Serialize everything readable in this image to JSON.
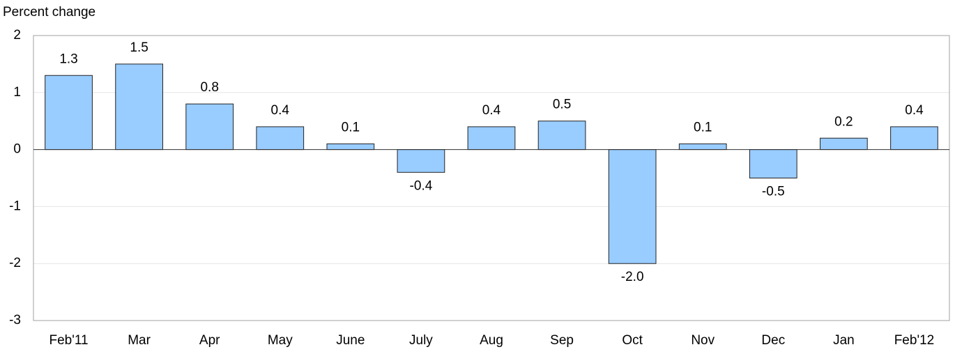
{
  "chart_data": {
    "type": "bar",
    "title": "Percent change",
    "categories": [
      "Feb'11",
      "Mar",
      "Apr",
      "May",
      "June",
      "July",
      "Aug",
      "Sep",
      "Oct",
      "Nov",
      "Dec",
      "Jan",
      "Feb'12"
    ],
    "values": [
      1.3,
      1.5,
      0.8,
      0.4,
      0.1,
      -0.4,
      0.4,
      0.5,
      -2.0,
      0.1,
      -0.5,
      0.2,
      0.4
    ],
    "value_labels": [
      "1.3",
      "1.5",
      "0.8",
      "0.4",
      "0.1",
      "-0.4",
      "0.4",
      "0.5",
      "-2.0",
      "0.1",
      "-0.5",
      "0.2",
      "0.4"
    ],
    "color": "#99ccff",
    "ylim": [
      -3,
      2
    ],
    "yticks": [
      2,
      1,
      0,
      -1,
      -2,
      -3
    ],
    "grid": true
  }
}
